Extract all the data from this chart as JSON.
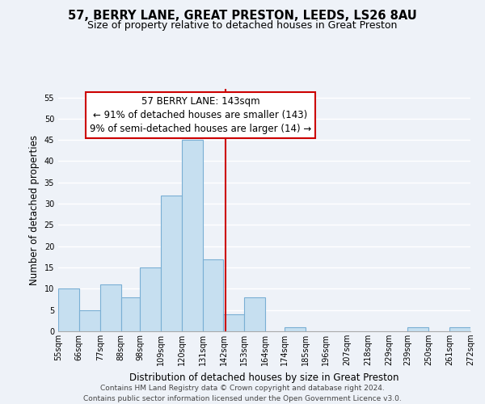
{
  "title": "57, BERRY LANE, GREAT PRESTON, LEEDS, LS26 8AU",
  "subtitle": "Size of property relative to detached houses in Great Preston",
  "xlabel": "Distribution of detached houses by size in Great Preston",
  "ylabel": "Number of detached properties",
  "bin_edges": [
    55,
    66,
    77,
    88,
    98,
    109,
    120,
    131,
    142,
    153,
    164,
    174,
    185,
    196,
    207,
    218,
    229,
    239,
    250,
    261,
    272
  ],
  "bin_labels": [
    "55sqm",
    "66sqm",
    "77sqm",
    "88sqm",
    "98sqm",
    "109sqm",
    "120sqm",
    "131sqm",
    "142sqm",
    "153sqm",
    "164sqm",
    "174sqm",
    "185sqm",
    "196sqm",
    "207sqm",
    "218sqm",
    "229sqm",
    "239sqm",
    "250sqm",
    "261sqm",
    "272sqm"
  ],
  "counts": [
    10,
    5,
    11,
    8,
    15,
    32,
    45,
    17,
    4,
    8,
    0,
    1,
    0,
    0,
    0,
    0,
    0,
    1,
    0,
    1
  ],
  "bar_color": "#c6dff0",
  "bar_edge_color": "#7aafd4",
  "vline_x": 143,
  "vline_color": "#cc0000",
  "annotation_line1": "57 BERRY LANE: 143sqm",
  "annotation_line2": "← 91% of detached houses are smaller (143)",
  "annotation_line3": "9% of semi-detached houses are larger (14) →",
  "annotation_box_color": "#cc0000",
  "ylim": [
    0,
    57
  ],
  "yticks": [
    0,
    5,
    10,
    15,
    20,
    25,
    30,
    35,
    40,
    45,
    50,
    55
  ],
  "footer_line1": "Contains HM Land Registry data © Crown copyright and database right 2024.",
  "footer_line2": "Contains public sector information licensed under the Open Government Licence v3.0.",
  "background_color": "#eef2f8",
  "grid_color": "#ffffff",
  "title_fontsize": 10.5,
  "subtitle_fontsize": 9,
  "axis_label_fontsize": 8.5,
  "tick_fontsize": 7,
  "annot_fontsize": 8.5,
  "footer_fontsize": 6.5
}
